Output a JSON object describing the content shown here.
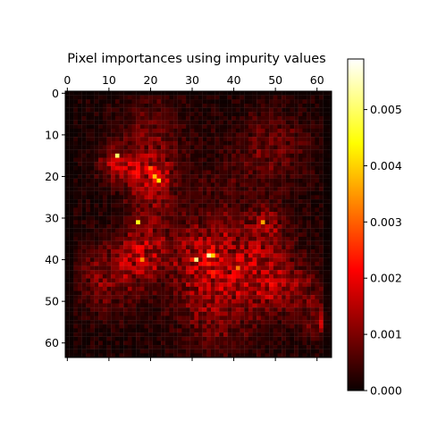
{
  "chart_data": {
    "type": "heatmap",
    "title": "Pixel importances using impurity values",
    "xlabel": "",
    "ylabel": "",
    "grid_size": [
      64,
      64
    ],
    "x_ticks": [
      0,
      10,
      20,
      30,
      40,
      50,
      60
    ],
    "y_ticks": [
      0,
      10,
      20,
      30,
      40,
      50,
      60
    ],
    "x_axis_position": "top",
    "colormap": "hot",
    "colorbar": {
      "ticks": [
        "0.000",
        "0.001",
        "0.002",
        "0.003",
        "0.004",
        "0.005"
      ],
      "tick_values": [
        0.0,
        0.001,
        0.002,
        0.003,
        0.004,
        0.005
      ],
      "vmin": 0.0,
      "vmax": 0.0059
    },
    "hotspots": [
      {
        "x": 21,
        "y": 20,
        "value": 0.0038
      },
      {
        "x": 22,
        "y": 21,
        "value": 0.0042
      },
      {
        "x": 12,
        "y": 15,
        "value": 0.005
      },
      {
        "x": 17,
        "y": 31,
        "value": 0.0045
      },
      {
        "x": 31,
        "y": 40,
        "value": 0.0052
      },
      {
        "x": 34,
        "y": 39,
        "value": 0.0054
      },
      {
        "x": 35,
        "y": 39,
        "value": 0.004
      },
      {
        "x": 47,
        "y": 31,
        "value": 0.0036
      },
      {
        "x": 18,
        "y": 40,
        "value": 0.0034
      },
      {
        "x": 41,
        "y": 42,
        "value": 0.0032
      },
      {
        "x": 20,
        "y": 18,
        "value": 0.003
      }
    ]
  }
}
